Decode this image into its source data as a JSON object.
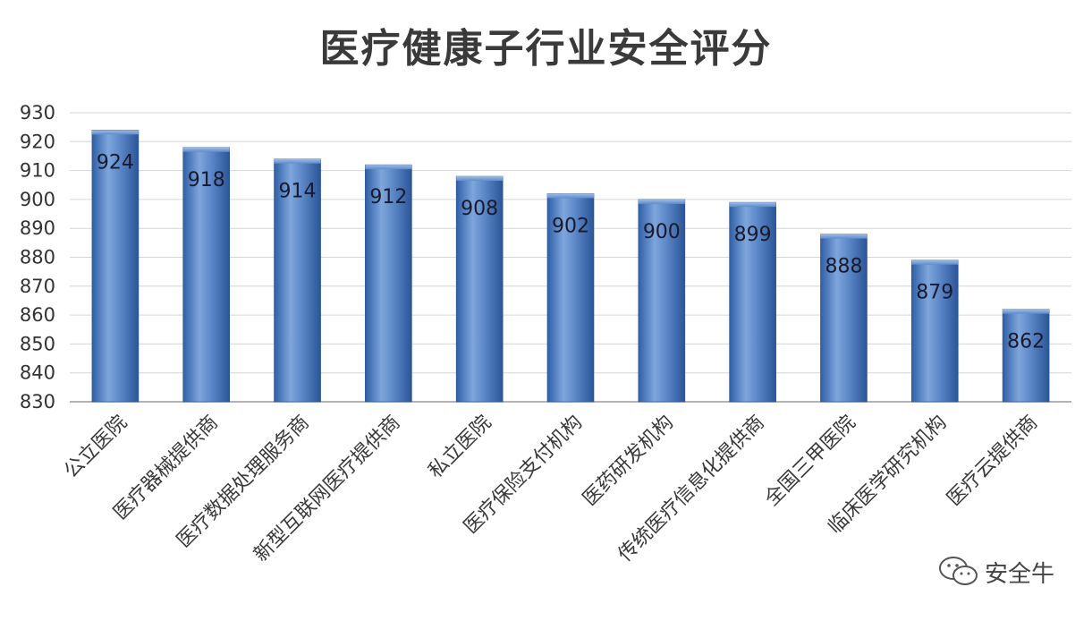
{
  "chart_data": {
    "type": "bar",
    "title": "医疗健康子行业安全评分",
    "categories": [
      "公立医院",
      "医疗器械提供商",
      "医疗数据处理服务商",
      "新型互联网医疗提供商",
      "私立医院",
      "医疗保险支付机构",
      "医药研发机构",
      "传统医疗信息化提供商",
      "全国三甲医院",
      "临床医学研究机构",
      "医疗云提供商"
    ],
    "values": [
      924,
      918,
      914,
      912,
      908,
      902,
      900,
      899,
      888,
      879,
      862
    ],
    "ylim": [
      830,
      930
    ],
    "yticks": [
      830,
      840,
      850,
      860,
      870,
      880,
      890,
      900,
      910,
      920,
      930
    ],
    "grid": true,
    "bar_color": "#4a7cc0",
    "data_labels": "inside-top"
  },
  "watermark": {
    "icon": "wechat-icon",
    "text": "安全牛"
  }
}
